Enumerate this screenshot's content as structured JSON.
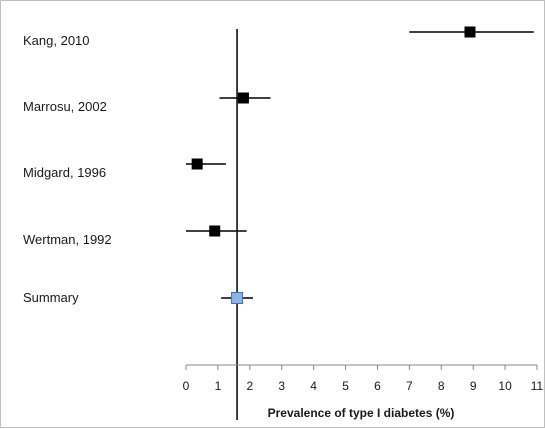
{
  "chart_data": {
    "type": "forest",
    "xlabel": "Prevalence of type I diabetes (%)",
    "xlim": [
      0,
      11
    ],
    "xticks": [
      "0",
      "1",
      "2",
      "3",
      "4",
      "5",
      "6",
      "7",
      "8",
      "9",
      "10",
      "11"
    ],
    "reference_line": 1.6,
    "studies": [
      {
        "label": "Kang, 2010",
        "estimate": 8.9,
        "lower": 7.0,
        "upper": 10.9
      },
      {
        "label": "Marrosu, 2002",
        "estimate": 1.8,
        "lower": 1.05,
        "upper": 2.65
      },
      {
        "label": "Midgard, 1996",
        "estimate": 0.35,
        "lower": 0.0,
        "upper": 1.25
      },
      {
        "label": "Wertman, 1992",
        "estimate": 0.9,
        "lower": 0.0,
        "upper": 1.9
      }
    ],
    "summary": {
      "label": "Summary",
      "estimate": 1.6,
      "lower": 1.1,
      "upper": 2.1
    },
    "colors": {
      "study_marker": "#000000",
      "summary_marker": "#8fb4e3",
      "summary_marker_border": "#4a6fa5",
      "lines": "#000000"
    }
  }
}
